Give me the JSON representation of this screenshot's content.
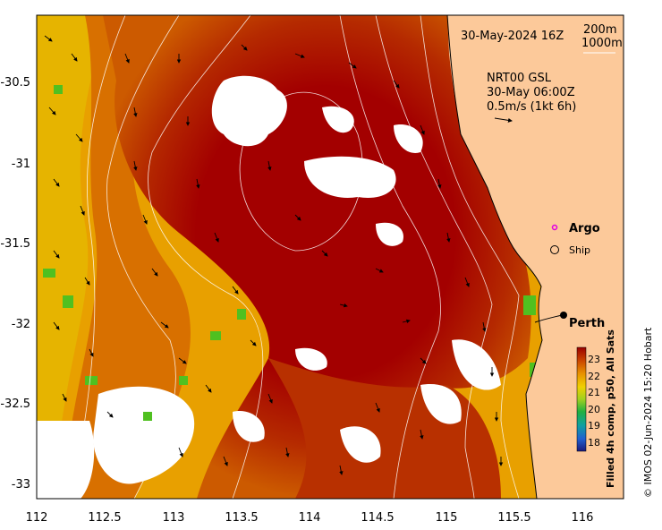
{
  "map": {
    "date_label": "30-May-2024 16Z",
    "contours_legend": [
      "200m",
      "1000m"
    ],
    "current_source": "NRT00 GSL",
    "current_time": "30-May 06:00Z",
    "current_scale_label": "0.5m/s (1kt 6h)",
    "legend_argo": "Argo",
    "legend_ship": "Ship",
    "city": "Perth",
    "colorbar_title": "Filled 4h comp, p50, All Sats",
    "colorbar_ticks": [
      "23",
      "22",
      "21",
      "20",
      "19",
      "18"
    ],
    "credit": "© IMOS 02-Jun-2024 15:20 Hobart",
    "x_ticks": [
      "112",
      "112.5",
      "113",
      "113.5",
      "114",
      "114.5",
      "115",
      "115.5",
      "116"
    ],
    "y_ticks": [
      "-30.5",
      "-31",
      "-31.5",
      "-32",
      "-32.5",
      "-33"
    ],
    "colors": {
      "land": "#fcc99a",
      "sst_warm": "#a50000",
      "sst_mid": "#e07a00",
      "sst_cool": "#e8c000",
      "cloud": "#ffffff"
    }
  }
}
